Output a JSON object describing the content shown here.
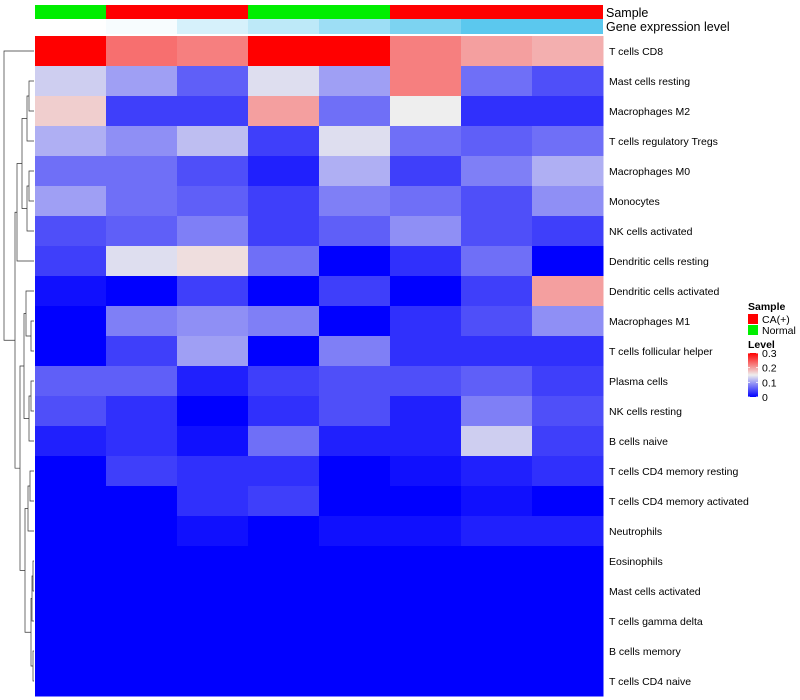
{
  "chart_data": {
    "type": "heatmap",
    "title": "",
    "annotations": {
      "sample_label": "Sample",
      "gene_expression_label": "Gene expression level",
      "sample_groups": [
        "Normal",
        "CA(+)",
        "CA(+)",
        "Normal",
        "Normal",
        "CA(+)",
        "CA(+)",
        "CA(+)"
      ],
      "gene_expression_levels": [
        0.0,
        0.05,
        0.25,
        0.4,
        0.6,
        0.8,
        1.0,
        1.0
      ]
    },
    "rows": [
      "T cells CD8",
      "Mast cells resting",
      "Macrophages M2",
      "T cells regulatory  Tregs",
      "Macrophages M0",
      "Monocytes",
      "NK cells activated",
      "Dendritic cells resting",
      "Dendritic cells activated",
      "Macrophages M1",
      "T cells follicular helper",
      "Plasma cells",
      "NK cells resting",
      "B cells naive",
      "T cells CD4 memory resting",
      "T cells CD4 memory activated",
      "Neutrophils",
      "Eosinophils",
      "Mast cells activated",
      "T cells gamma delta",
      "B cells memory",
      "T cells CD4 naive"
    ],
    "values": [
      [
        0.3,
        0.23,
        0.22,
        0.3,
        0.3,
        0.22,
        0.2,
        0.19
      ],
      [
        0.13,
        0.1,
        0.06,
        0.14,
        0.1,
        0.22,
        0.07,
        0.05
      ],
      [
        0.17,
        0.04,
        0.04,
        0.2,
        0.07,
        0.15,
        0.03,
        0.03
      ],
      [
        0.11,
        0.09,
        0.12,
        0.04,
        0.14,
        0.07,
        0.06,
        0.07
      ],
      [
        0.07,
        0.07,
        0.05,
        0.02,
        0.11,
        0.04,
        0.08,
        0.11
      ],
      [
        0.1,
        0.07,
        0.06,
        0.04,
        0.08,
        0.07,
        0.05,
        0.09
      ],
      [
        0.05,
        0.06,
        0.08,
        0.04,
        0.06,
        0.09,
        0.05,
        0.04
      ],
      [
        0.04,
        0.14,
        0.16,
        0.07,
        0.0,
        0.03,
        0.07,
        0.0
      ],
      [
        0.01,
        0.0,
        0.04,
        0.0,
        0.04,
        0.0,
        0.04,
        0.2
      ],
      [
        0.0,
        0.08,
        0.09,
        0.08,
        0.0,
        0.03,
        0.05,
        0.09
      ],
      [
        0.0,
        0.04,
        0.1,
        0.0,
        0.08,
        0.03,
        0.03,
        0.03
      ],
      [
        0.06,
        0.06,
        0.02,
        0.04,
        0.05,
        0.05,
        0.06,
        0.04
      ],
      [
        0.05,
        0.03,
        0.0,
        0.03,
        0.05,
        0.02,
        0.08,
        0.05
      ],
      [
        0.02,
        0.03,
        0.01,
        0.07,
        0.02,
        0.02,
        0.13,
        0.04
      ],
      [
        0.0,
        0.04,
        0.03,
        0.03,
        0.0,
        0.01,
        0.02,
        0.03
      ],
      [
        0.0,
        0.0,
        0.03,
        0.04,
        0.0,
        0.0,
        0.01,
        0.0
      ],
      [
        0.0,
        0.0,
        0.01,
        0.0,
        0.01,
        0.01,
        0.02,
        0.02
      ],
      [
        0.0,
        0.0,
        0.0,
        0.0,
        0.0,
        0.0,
        0.0,
        0.0
      ],
      [
        0.0,
        0.0,
        0.0,
        0.0,
        0.0,
        0.0,
        0.0,
        0.0
      ],
      [
        0.0,
        0.0,
        0.0,
        0.0,
        0.0,
        0.0,
        0.0,
        0.0
      ],
      [
        0.0,
        0.0,
        0.0,
        0.0,
        0.0,
        0.0,
        0.0,
        0.0
      ],
      [
        0.0,
        0.0,
        0.0,
        0.0,
        0.0,
        0.0,
        0.0,
        0.0
      ]
    ],
    "value_range": [
      0,
      0.3
    ],
    "color_scale": {
      "low": "#0000ff",
      "mid": "#eeeeee",
      "high": "#ff0000",
      "midpoint": 0.15
    },
    "legend": {
      "position": "right",
      "sample_title": "Sample",
      "sample_items": [
        {
          "label": "CA(+)",
          "color": "#ff0000"
        },
        {
          "label": "Normal",
          "color": "#00ee00"
        }
      ],
      "level_title": "Level",
      "level_ticks": [
        0.3,
        0.2,
        0.1,
        0
      ],
      "level_tick_labels": [
        "0.3",
        "0.2",
        "0.1",
        "0"
      ]
    },
    "annotation_colors": {
      "Normal": "#00ee00",
      "CA(+)": "#ff0000",
      "gene_low": "#ffffff",
      "gene_high": "#5bc8ee"
    }
  }
}
